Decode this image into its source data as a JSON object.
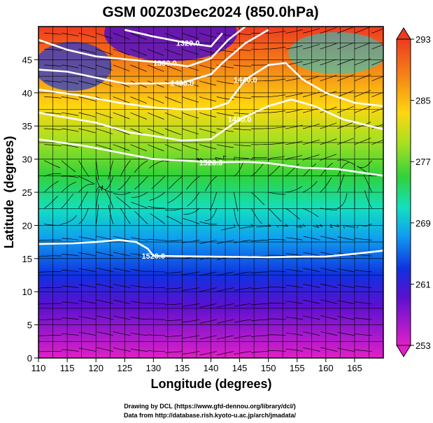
{
  "chart_data": {
    "type": "heatmap",
    "title": "GSM 00Z03Dec2024 (850.0hPa)",
    "xlabel": "Longitude (degrees)",
    "ylabel": "Latitude  (degrees)",
    "xlim": [
      110,
      170
    ],
    "ylim": [
      0,
      50
    ],
    "x_ticks": [
      110,
      115,
      120,
      125,
      130,
      135,
      140,
      145,
      150,
      155,
      160,
      165
    ],
    "y_ticks": [
      0,
      5,
      10,
      15,
      20,
      25,
      30,
      35,
      40,
      45
    ],
    "grid": true,
    "colorbar": {
      "min": 253,
      "max": 293,
      "ticks": [
        253,
        261,
        269,
        277,
        285,
        293
      ]
    },
    "contours": [
      {
        "label": "1320.0",
        "points": [
          [
            125,
            49.5
          ],
          [
            130,
            48.5
          ],
          [
            136,
            47.5
          ],
          [
            140,
            47
          ],
          [
            142,
            49
          ]
        ]
      },
      {
        "label": "1360.0",
        "points": [
          [
            110,
            48
          ],
          [
            115,
            46.5
          ],
          [
            120,
            45.5
          ],
          [
            126,
            45
          ],
          [
            132,
            44.5
          ],
          [
            136,
            44
          ],
          [
            140,
            45.2
          ],
          [
            143,
            48
          ],
          [
            146,
            50
          ]
        ]
      },
      {
        "label": "1400.0",
        "points": [
          [
            110,
            43.5
          ],
          [
            115,
            43.2
          ],
          [
            120,
            42.3
          ],
          [
            125,
            41.4
          ],
          [
            130,
            41.4
          ],
          [
            135,
            41.5
          ],
          [
            138,
            42.3
          ],
          [
            140,
            42.8
          ],
          [
            142,
            44.5
          ],
          [
            146,
            47.5
          ],
          [
            150,
            49.5
          ]
        ]
      },
      {
        "label": "1440.0",
        "points": [
          [
            110,
            40.5
          ],
          [
            118,
            39.5
          ],
          [
            124,
            38.5
          ],
          [
            130,
            37.8
          ],
          [
            135,
            37.5
          ],
          [
            140,
            37.6
          ],
          [
            143,
            38.5
          ],
          [
            146,
            42
          ],
          [
            150,
            44.2
          ],
          [
            153,
            44.5
          ],
          [
            156,
            42
          ],
          [
            160,
            40
          ],
          [
            165,
            38.5
          ],
          [
            170,
            38
          ]
        ]
      },
      {
        "label": "1480.0",
        "points": [
          [
            110,
            37
          ],
          [
            120,
            35.5
          ],
          [
            126,
            34
          ],
          [
            130,
            33.5
          ],
          [
            135,
            32.8
          ],
          [
            140,
            33
          ],
          [
            145,
            36
          ],
          [
            150,
            38
          ],
          [
            154,
            39
          ],
          [
            158,
            38
          ],
          [
            163,
            36
          ],
          [
            170,
            34.5
          ]
        ]
      },
      {
        "label": "1520.0",
        "points": [
          [
            110,
            33
          ],
          [
            118,
            32
          ],
          [
            124,
            31
          ],
          [
            130,
            30
          ],
          [
            135,
            29.8
          ],
          [
            140,
            29.5
          ],
          [
            146,
            29.6
          ],
          [
            150,
            29.4
          ],
          [
            156,
            28.7
          ],
          [
            162,
            28.5
          ],
          [
            170,
            27.5
          ]
        ]
      },
      {
        "label": "1520.0",
        "points": [
          [
            110,
            17.2
          ],
          [
            116,
            17.3
          ],
          [
            120,
            17.5
          ],
          [
            124,
            17.8
          ],
          [
            127,
            17.5
          ],
          [
            129,
            16.5
          ],
          [
            130,
            15.4
          ],
          [
            140,
            15.3
          ],
          [
            150,
            15.2
          ],
          [
            156,
            15.3
          ],
          [
            160,
            15.3
          ],
          [
            166,
            15.8
          ],
          [
            170,
            16.2
          ]
        ]
      }
    ],
    "credits": [
      "Drawing by DCL (https://www.gfd-dennou.org/library/dcl/)",
      "Data from http://database.rish.kyoto-u.ac.jp/arch/jmadata/"
    ]
  }
}
